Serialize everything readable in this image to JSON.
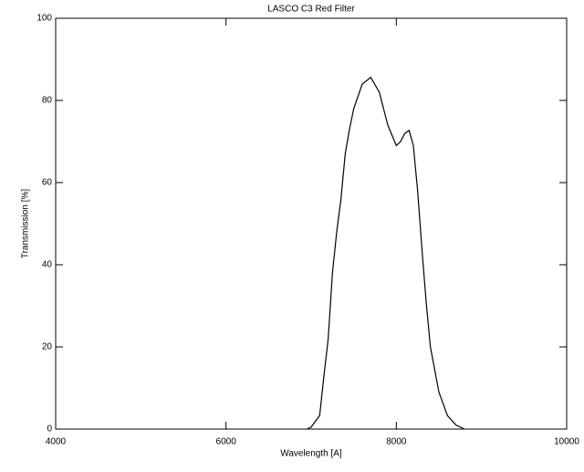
{
  "chart_data": {
    "type": "line",
    "title": "LASCO C3 Red Filter",
    "x_label": "Wavelength [A]",
    "y_label": "Transmission [%]",
    "x": [
      6950,
      7000,
      7100,
      7150,
      7200,
      7250,
      7300,
      7350,
      7400,
      7450,
      7500,
      7600,
      7700,
      7800,
      7900,
      8000,
      8050,
      8100,
      8150,
      8200,
      8250,
      8300,
      8350,
      8400,
      8500,
      8600,
      8700,
      8800
    ],
    "series": [
      {
        "name": "Transmission",
        "color": "#000000",
        "values": [
          0,
          0.5,
          3.3,
          13,
          22,
          38,
          48,
          56,
          67,
          73,
          78,
          84,
          85.6,
          82,
          74,
          69,
          70,
          72,
          72.7,
          69,
          58,
          44,
          31,
          20,
          9,
          3.3,
          1,
          0
        ]
      }
    ],
    "xlim": [
      4000,
      10000
    ],
    "xticks": [
      4000,
      6000,
      8000,
      10000
    ],
    "ylim": [
      0,
      100
    ],
    "yticks": [
      0,
      20,
      40,
      60,
      80,
      100
    ]
  }
}
